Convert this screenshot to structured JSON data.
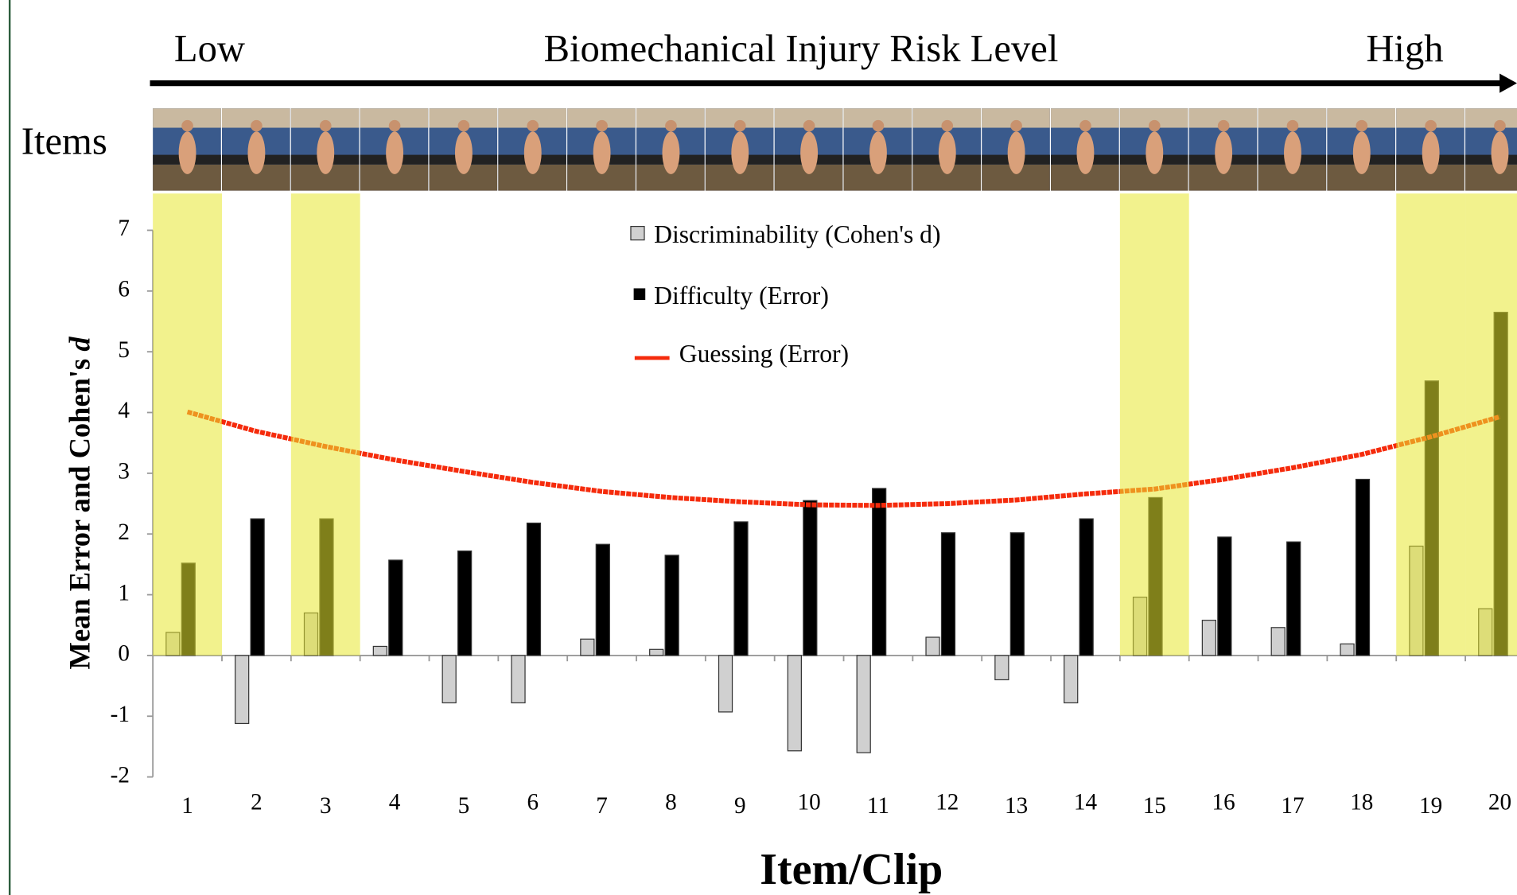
{
  "header": {
    "low": "Low",
    "title": "Biomechanical Injury Risk Level",
    "high": "High",
    "items_label": "Items"
  },
  "chart_data": {
    "type": "bar",
    "x_label": "Item/Clip",
    "y_label": "Mean Error and Cohen's",
    "y_label_var": "d",
    "categories": [
      "1",
      "2",
      "3",
      "4",
      "5",
      "6",
      "7",
      "8",
      "9",
      "10",
      "11",
      "12",
      "13",
      "14",
      "15",
      "16",
      "17",
      "18",
      "19",
      "20"
    ],
    "highlight": [
      "1",
      "3",
      "15",
      "19",
      "20"
    ],
    "highlight_color": "#e8e830",
    "series": [
      {
        "name": "Discriminability (Cohen's d)",
        "type": "bar",
        "color": "#d0d0d0",
        "values": [
          0.38,
          -1.12,
          0.7,
          0.15,
          -0.78,
          -0.78,
          0.27,
          0.1,
          -0.93,
          -1.57,
          -1.6,
          0.3,
          -0.4,
          -0.78,
          0.96,
          0.58,
          0.46,
          0.19,
          1.8,
          0.77
        ]
      },
      {
        "name": "Difficulty (Error)",
        "type": "bar",
        "color": "#000000",
        "values": [
          1.52,
          2.25,
          2.25,
          1.57,
          1.72,
          2.18,
          1.83,
          1.65,
          2.2,
          2.55,
          2.75,
          2.02,
          2.02,
          2.25,
          2.6,
          1.95,
          1.87,
          2.9,
          4.52,
          5.65
        ]
      },
      {
        "name": "Guessing (Error)",
        "type": "line",
        "color": "#f52b0c",
        "values": [
          4.01,
          3.69,
          3.44,
          3.22,
          3.03,
          2.85,
          2.7,
          2.6,
          2.53,
          2.48,
          2.47,
          2.5,
          2.56,
          2.66,
          2.74,
          2.9,
          3.09,
          3.31,
          3.6,
          3.93
        ]
      }
    ],
    "ylim": [
      -2,
      7
    ],
    "yticks": [
      -2,
      -1,
      0,
      1,
      2,
      3,
      4,
      5,
      6,
      7
    ]
  }
}
